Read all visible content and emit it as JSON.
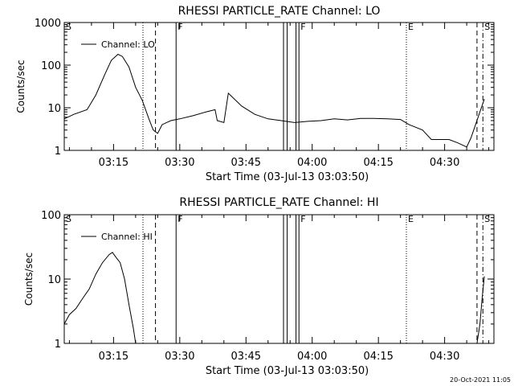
{
  "footer": {
    "date_stamp": "20-Oct-2021 11:05"
  },
  "chart_data": [
    {
      "type": "line",
      "title": "RHESSI PARTICLE_RATE Channel: LO",
      "xlabel": "Start Time (03-Jul-13 03:03:50)",
      "ylabel": "Counts/sec",
      "yscale": "log",
      "ylim": [
        1,
        1000
      ],
      "ytick_labels": [
        "1",
        "10",
        "100",
        "1000"
      ],
      "xtick_labels": [
        "03:15",
        "03:30",
        "03:45",
        "04:00",
        "04:15",
        "04:30"
      ],
      "legend": {
        "placement": "top-left",
        "entries": [
          "Channel: LO"
        ]
      },
      "series": [
        {
          "name": "Channel: LO",
          "x": [
            "03:03:50",
            "03:06:00",
            "03:09:00",
            "03:11:00",
            "03:13:00",
            "03:14:30",
            "03:16:00",
            "03:17:00",
            "03:18:30",
            "03:20:00",
            "03:21:30",
            "03:23:00",
            "03:24:00",
            "03:25:00",
            "03:26:00",
            "03:27:00",
            "03:28:00",
            "03:30:00",
            "03:33:00",
            "03:36:00",
            "03:38:00",
            "03:38:30",
            "03:40:00",
            "03:41:00",
            "03:44:00",
            "03:47:00",
            "03:50:00",
            "03:53:00",
            "03:56:00",
            "03:59:00",
            "04:02:00",
            "04:05:00",
            "04:08:00",
            "04:11:00",
            "04:14:00",
            "04:17:00",
            "04:20:00",
            "04:22:00",
            "04:25:00",
            "04:27:00",
            "04:29:00",
            "04:31:00",
            "04:33:00",
            "04:35:00",
            "04:36:00",
            "04:37:00",
            "04:38:00",
            "04:39:00"
          ],
          "values": [
            5.5,
            7,
            9,
            20,
            60,
            130,
            180,
            160,
            90,
            30,
            15,
            5.5,
            3,
            2.5,
            4,
            4.5,
            5,
            5.5,
            6.5,
            8,
            9,
            5,
            4.5,
            22,
            11,
            7,
            5.5,
            5,
            4.5,
            4.8,
            5,
            5.5,
            5.2,
            5.6,
            5.6,
            5.5,
            5.3,
            4,
            3,
            1.8,
            1.8,
            1.8,
            1.5,
            1.2,
            2,
            4,
            8,
            16
          ]
        }
      ],
      "event_markers": [
        {
          "label": "S",
          "time": "03:03:50",
          "style": "solid"
        },
        {
          "label": "",
          "time": "03:21:40",
          "style": "dotted"
        },
        {
          "label": "",
          "time": "03:24:30",
          "style": "dashed"
        },
        {
          "label": "F",
          "time": "03:29:10",
          "style": "solid"
        },
        {
          "label": "",
          "time": "03:53:30",
          "style": "solid"
        },
        {
          "label": "",
          "time": "03:54:20",
          "style": "solid"
        },
        {
          "label": "",
          "time": "03:56:20",
          "style": "solid"
        },
        {
          "label": "F",
          "time": "03:57:00",
          "style": "solid"
        },
        {
          "label": "E",
          "time": "04:21:20",
          "style": "dotted"
        },
        {
          "label": "",
          "time": "04:37:20",
          "style": "dashed"
        },
        {
          "label": "S",
          "time": "04:38:40",
          "style": "dashdot"
        }
      ]
    },
    {
      "type": "line",
      "title": "RHESSI PARTICLE_RATE Channel: HI",
      "xlabel": "Start Time (03-Jul-13 03:03:50)",
      "ylabel": "Counts/sec",
      "yscale": "log",
      "ylim": [
        1,
        100
      ],
      "ytick_labels": [
        "1",
        "10",
        "100"
      ],
      "xtick_labels": [
        "03:15",
        "03:30",
        "03:45",
        "04:00",
        "04:15",
        "04:30"
      ],
      "legend": {
        "placement": "top-left",
        "entries": [
          "Channel: HI"
        ]
      },
      "series": [
        {
          "name": "Channel: HI",
          "x": [
            "03:03:50",
            "03:05:00",
            "03:06:30",
            "03:08:00",
            "03:09:30",
            "03:11:00",
            "03:12:30",
            "03:14:00",
            "03:14:45",
            "03:15:30",
            "03:16:30",
            "03:17:30",
            "03:18:30",
            "03:19:30",
            "03:20:00"
          ],
          "values": [
            2,
            2.8,
            3.5,
            5,
            7,
            12,
            18,
            24,
            26,
            22,
            18,
            10,
            4,
            1.7,
            1
          ]
        },
        {
          "name": "",
          "x": [
            "04:37:20",
            "04:38:00",
            "04:38:30",
            "04:39:00"
          ],
          "values": [
            1,
            2,
            5,
            11
          ]
        }
      ],
      "event_markers": [
        {
          "label": "S",
          "time": "03:03:50",
          "style": "solid"
        },
        {
          "label": "",
          "time": "03:21:40",
          "style": "dotted"
        },
        {
          "label": "",
          "time": "03:24:30",
          "style": "dashed"
        },
        {
          "label": "F",
          "time": "03:29:10",
          "style": "solid"
        },
        {
          "label": "",
          "time": "03:53:30",
          "style": "solid"
        },
        {
          "label": "",
          "time": "03:54:20",
          "style": "solid"
        },
        {
          "label": "",
          "time": "03:56:20",
          "style": "solid"
        },
        {
          "label": "F",
          "time": "03:57:00",
          "style": "solid"
        },
        {
          "label": "E",
          "time": "04:21:20",
          "style": "dotted"
        },
        {
          "label": "",
          "time": "04:37:20",
          "style": "dashed"
        },
        {
          "label": "S",
          "time": "04:38:40",
          "style": "dashdot"
        }
      ]
    }
  ]
}
